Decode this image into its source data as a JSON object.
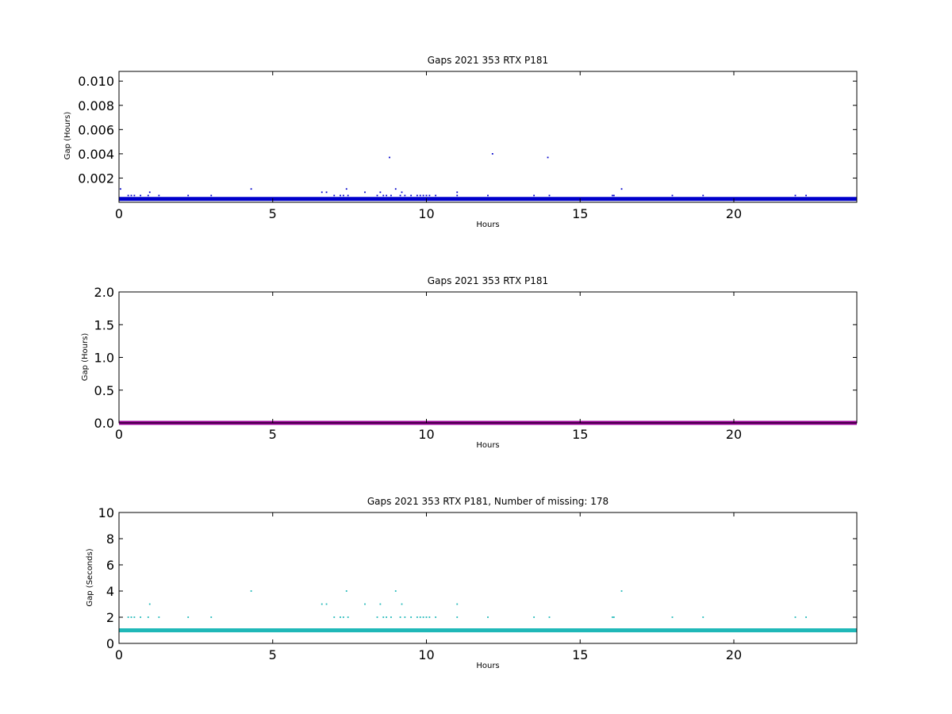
{
  "chart_data": [
    {
      "type": "scatter",
      "title": "Gaps 2021 353 RTX  P181",
      "xlabel": "Hours",
      "ylabel": "Gap (Hours)",
      "xlim": [
        0,
        24
      ],
      "ylim": [
        0,
        0.0108
      ],
      "xticks": [
        0,
        5,
        10,
        15,
        20
      ],
      "xtick_labels": [
        "0",
        "5",
        "10",
        "15",
        "20"
      ],
      "yticks": [
        0.002,
        0.004,
        0.006,
        0.008,
        0.01
      ],
      "ytick_labels": [
        "0.002",
        "0.004",
        "0.006",
        "0.008",
        "0.010"
      ],
      "grid": false,
      "series": [
        {
          "color": "#0000cc",
          "baseline": 0.00028,
          "points": [
            [
              0.05,
              0.0011
            ],
            [
              0.3,
              0.00056
            ],
            [
              0.4,
              0.00056
            ],
            [
              0.5,
              0.00056
            ],
            [
              0.7,
              0.00056
            ],
            [
              0.95,
              0.00056
            ],
            [
              1.0,
              0.00083
            ],
            [
              1.3,
              0.00056
            ],
            [
              2.25,
              0.00056
            ],
            [
              3.0,
              0.00056
            ],
            [
              4.3,
              0.0011
            ],
            [
              6.6,
              0.00083
            ],
            [
              6.75,
              0.00083
            ],
            [
              7.0,
              0.00056
            ],
            [
              7.2,
              0.00056
            ],
            [
              7.3,
              0.00056
            ],
            [
              7.4,
              0.0011
            ],
            [
              7.45,
              0.00056
            ],
            [
              8.0,
              0.00083
            ],
            [
              8.4,
              0.00056
            ],
            [
              8.5,
              0.00083
            ],
            [
              8.6,
              0.00056
            ],
            [
              8.7,
              0.00056
            ],
            [
              8.8,
              0.0037
            ],
            [
              8.85,
              0.00056
            ],
            [
              9.0,
              0.0011
            ],
            [
              9.15,
              0.00056
            ],
            [
              9.2,
              0.00083
            ],
            [
              9.3,
              0.00056
            ],
            [
              9.5,
              0.00056
            ],
            [
              9.7,
              0.00056
            ],
            [
              9.8,
              0.00056
            ],
            [
              9.9,
              0.00056
            ],
            [
              10.0,
              0.00056
            ],
            [
              10.1,
              0.00056
            ],
            [
              10.3,
              0.00056
            ],
            [
              11.0,
              0.00056
            ],
            [
              11.0,
              0.00083
            ],
            [
              12.0,
              0.00056
            ],
            [
              12.15,
              0.004
            ],
            [
              13.5,
              0.00056
            ],
            [
              13.95,
              0.0037
            ],
            [
              14.0,
              0.00056
            ],
            [
              16.05,
              0.00056
            ],
            [
              16.1,
              0.00056
            ],
            [
              16.35,
              0.0011
            ],
            [
              18.0,
              0.00056
            ],
            [
              19.0,
              0.00056
            ],
            [
              22.0,
              0.00056
            ],
            [
              22.35,
              0.00056
            ]
          ]
        }
      ]
    },
    {
      "type": "scatter",
      "title": "Gaps 2021 353 RTX  P181",
      "xlabel": "Hours",
      "ylabel": "Gap (Hours)",
      "xlim": [
        0,
        24
      ],
      "ylim": [
        0,
        2.0
      ],
      "xticks": [
        0,
        5,
        10,
        15,
        20
      ],
      "xtick_labels": [
        "0",
        "5",
        "10",
        "15",
        "20"
      ],
      "yticks": [
        0.0,
        0.5,
        1.0,
        1.5,
        2.0
      ],
      "ytick_labels": [
        "0.0",
        "0.5",
        "1.0",
        "1.5",
        "2.0"
      ],
      "grid": false,
      "series": [
        {
          "color": "#990099",
          "baseline": 0.0,
          "points": []
        }
      ]
    },
    {
      "type": "scatter",
      "title": "Gaps 2021 353 RTX  P181, Number of missing: 178",
      "xlabel": "Hours",
      "ylabel": "Gap (Seconds)",
      "xlim": [
        0,
        24
      ],
      "ylim": [
        0,
        10
      ],
      "xticks": [
        0,
        5,
        10,
        15,
        20
      ],
      "xtick_labels": [
        "0",
        "5",
        "10",
        "15",
        "20"
      ],
      "yticks": [
        0,
        2,
        4,
        6,
        8,
        10
      ],
      "ytick_labels": [
        "0",
        "2",
        "4",
        "6",
        "8",
        "10"
      ],
      "grid": false,
      "series": [
        {
          "color": "#1fb8b8",
          "baseline": 1,
          "points": [
            [
              0.3,
              2
            ],
            [
              0.4,
              2
            ],
            [
              0.5,
              2
            ],
            [
              0.7,
              2
            ],
            [
              0.95,
              2
            ],
            [
              1.0,
              3
            ],
            [
              1.3,
              2
            ],
            [
              2.25,
              2
            ],
            [
              3.0,
              2
            ],
            [
              4.3,
              4
            ],
            [
              6.6,
              3
            ],
            [
              6.75,
              3
            ],
            [
              7.0,
              2
            ],
            [
              7.2,
              2
            ],
            [
              7.3,
              2
            ],
            [
              7.4,
              4
            ],
            [
              7.45,
              2
            ],
            [
              8.0,
              3
            ],
            [
              8.4,
              2
            ],
            [
              8.5,
              3
            ],
            [
              8.6,
              2
            ],
            [
              8.7,
              2
            ],
            [
              8.85,
              2
            ],
            [
              9.0,
              4
            ],
            [
              9.15,
              2
            ],
            [
              9.2,
              3
            ],
            [
              9.3,
              2
            ],
            [
              9.5,
              2
            ],
            [
              9.7,
              2
            ],
            [
              9.8,
              2
            ],
            [
              9.9,
              2
            ],
            [
              10.0,
              2
            ],
            [
              10.1,
              2
            ],
            [
              10.3,
              2
            ],
            [
              11.0,
              2
            ],
            [
              11.0,
              3
            ],
            [
              12.0,
              2
            ],
            [
              13.5,
              2
            ],
            [
              14.0,
              2
            ],
            [
              16.05,
              2
            ],
            [
              16.1,
              2
            ],
            [
              16.35,
              4
            ],
            [
              18.0,
              2
            ],
            [
              19.0,
              2
            ],
            [
              22.0,
              2
            ],
            [
              22.35,
              2
            ]
          ]
        }
      ]
    }
  ]
}
